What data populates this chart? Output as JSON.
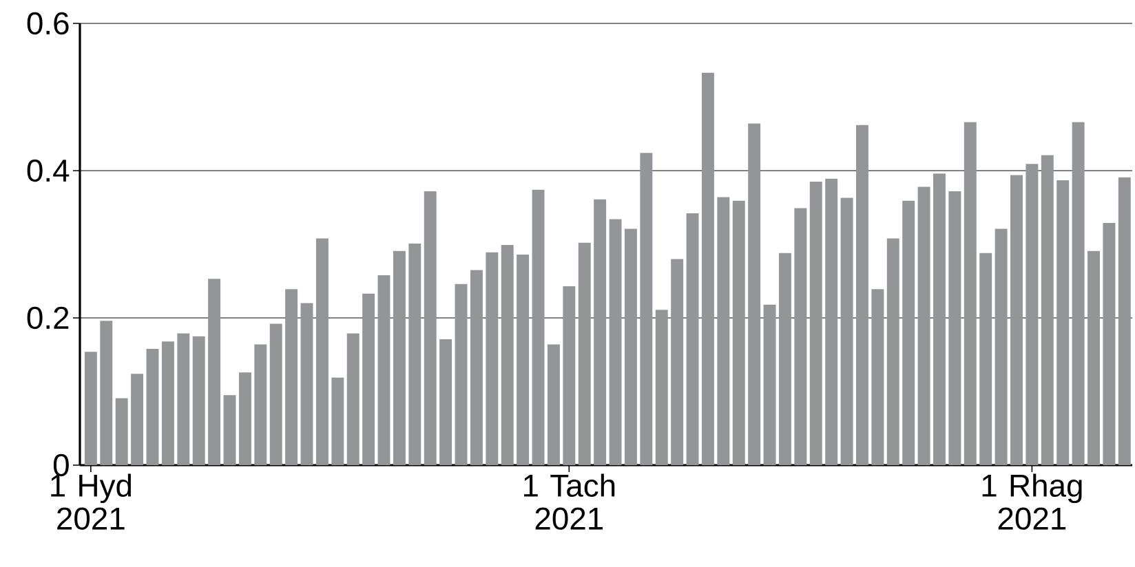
{
  "chart_data": {
    "type": "bar",
    "color": "#939598",
    "grid": "y",
    "x": [
      "2021-10-01",
      "2021-10-02",
      "2021-10-03",
      "2021-10-04",
      "2021-10-05",
      "2021-10-06",
      "2021-10-07",
      "2021-10-08",
      "2021-10-09",
      "2021-10-10",
      "2021-10-11",
      "2021-10-12",
      "2021-10-13",
      "2021-10-14",
      "2021-10-15",
      "2021-10-16",
      "2021-10-17",
      "2021-10-18",
      "2021-10-19",
      "2021-10-20",
      "2021-10-21",
      "2021-10-22",
      "2021-10-23",
      "2021-10-24",
      "2021-10-25",
      "2021-10-26",
      "2021-10-27",
      "2021-10-28",
      "2021-10-29",
      "2021-10-30",
      "2021-10-31",
      "2021-11-01",
      "2021-11-02",
      "2021-11-03",
      "2021-11-04",
      "2021-11-05",
      "2021-11-06",
      "2021-11-07",
      "2021-11-08",
      "2021-11-09",
      "2021-11-10",
      "2021-11-11",
      "2021-11-12",
      "2021-11-13",
      "2021-11-14",
      "2021-11-15",
      "2021-11-16",
      "2021-11-17",
      "2021-11-18",
      "2021-11-19",
      "2021-11-20",
      "2021-11-21",
      "2021-11-22",
      "2021-11-23",
      "2021-11-24",
      "2021-11-25",
      "2021-11-26",
      "2021-11-27",
      "2021-11-28",
      "2021-11-29",
      "2021-11-30",
      "2021-12-01",
      "2021-12-02",
      "2021-12-03",
      "2021-12-04",
      "2021-12-05",
      "2021-12-06",
      "2021-12-07"
    ],
    "values": [
      0.154,
      0.196,
      0.091,
      0.124,
      0.158,
      0.168,
      0.179,
      0.175,
      0.253,
      0.095,
      0.126,
      0.164,
      0.192,
      0.239,
      0.22,
      0.308,
      0.119,
      0.179,
      0.233,
      0.258,
      0.291,
      0.301,
      0.372,
      0.171,
      0.246,
      0.265,
      0.289,
      0.299,
      0.286,
      0.374,
      0.164,
      0.243,
      0.302,
      0.361,
      0.334,
      0.321,
      0.424,
      0.211,
      0.28,
      0.342,
      0.533,
      0.364,
      0.359,
      0.464,
      0.218,
      0.288,
      0.349,
      0.385,
      0.389,
      0.363,
      0.462,
      0.239,
      0.308,
      0.359,
      0.378,
      0.396,
      0.372,
      0.466,
      0.288,
      0.321,
      0.394,
      0.409,
      0.421,
      0.387,
      0.466,
      0.291,
      0.329,
      0.391
    ],
    "xlim": [
      "2021-09-30T07:00",
      "2021-12-07T12:00"
    ],
    "ylim": [
      0,
      0.6
    ],
    "xticks": [
      {
        "value": "2021-10-01",
        "label": "1 Hyd 2021"
      },
      {
        "value": "2021-11-01",
        "label": "1 Tach 2021"
      },
      {
        "value": "2021-12-01",
        "label": "1 Rhag 2021"
      }
    ],
    "yticks": [
      0,
      0.2,
      0.4,
      0.6
    ]
  }
}
